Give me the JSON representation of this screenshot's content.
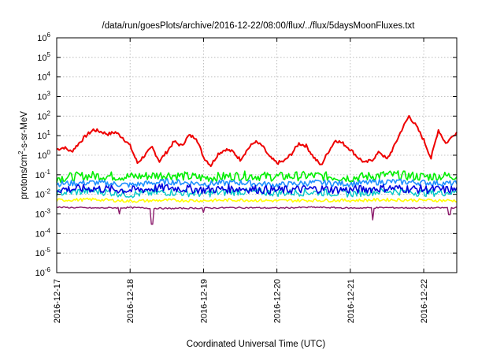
{
  "chart_data": {
    "type": "line",
    "title": "/data/run/goesPlots/archive/2016-12-22/08:00/flux/../flux/5daysMoonFluxes.txt",
    "xlabel": "Coordinated Universal Time (UTC)",
    "ylabel_base": "protons/cm",
    "ylabel_sup": "2",
    "ylabel_rest": "-s-sr-MeV",
    "y_scale": "log",
    "ylim_exp": [
      -6,
      6
    ],
    "y_ticks": [
      {
        "base": "10",
        "exp": "-6",
        "e": -6
      },
      {
        "base": "10",
        "exp": "-5",
        "e": -5
      },
      {
        "base": "10",
        "exp": "-4",
        "e": -4
      },
      {
        "base": "10",
        "exp": "-3",
        "e": -3
      },
      {
        "base": "10",
        "exp": "-2",
        "e": -2
      },
      {
        "base": "10",
        "exp": "-1",
        "e": -1
      },
      {
        "base": "10",
        "exp": "0",
        "e": 0
      },
      {
        "base": "10",
        "exp": "1",
        "e": 1
      },
      {
        "base": "10",
        "exp": "2",
        "e": 2
      },
      {
        "base": "10",
        "exp": "3",
        "e": 3
      },
      {
        "base": "10",
        "exp": "4",
        "e": 4
      },
      {
        "base": "10",
        "exp": "5",
        "e": 5
      },
      {
        "base": "10",
        "exp": "6",
        "e": 6
      }
    ],
    "xlim_days": [
      0,
      5.45
    ],
    "x_ticks": [
      {
        "label": "2016-12-17",
        "day": 0
      },
      {
        "label": "2016-12-18",
        "day": 1
      },
      {
        "label": "2016-12-19",
        "day": 2
      },
      {
        "label": "2016-12-20",
        "day": 3
      },
      {
        "label": "2016-12-21",
        "day": 4
      },
      {
        "label": "2016-12-22",
        "day": 5
      }
    ],
    "grid": true,
    "series": [
      {
        "color": "#ee0000",
        "width": 2.0,
        "x": [
          0,
          0.1,
          0.2,
          0.3,
          0.4,
          0.5,
          0.6,
          0.7,
          0.8,
          0.9,
          1.0,
          1.1,
          1.2,
          1.3,
          1.4,
          1.5,
          1.6,
          1.7,
          1.8,
          1.9,
          2.0,
          2.1,
          2.2,
          2.3,
          2.4,
          2.5,
          2.6,
          2.7,
          2.8,
          2.9,
          3.0,
          3.1,
          3.2,
          3.3,
          3.4,
          3.5,
          3.6,
          3.7,
          3.8,
          3.9,
          4.0,
          4.1,
          4.2,
          4.3,
          4.4,
          4.5,
          4.6,
          4.7,
          4.8,
          4.9,
          5.0,
          5.1,
          5.2,
          5.3,
          5.45
        ],
        "y": [
          2,
          2.5,
          1.5,
          4,
          10,
          20,
          16,
          12,
          15,
          8,
          3,
          0.4,
          1,
          2.5,
          0.5,
          1.5,
          5,
          3,
          10,
          8,
          0.8,
          0.3,
          1.2,
          2,
          1.5,
          0.6,
          2,
          5,
          3,
          0.8,
          0.4,
          0.5,
          1.2,
          4,
          3,
          0.8,
          0.3,
          1.5,
          6,
          4,
          2,
          0.8,
          0.4,
          0.6,
          1.5,
          0.6,
          3,
          20,
          100,
          30,
          6,
          0.7,
          20,
          4,
          15
        ]
      },
      {
        "color": "#00ee00",
        "width": 1.6,
        "x": [
          0,
          0.5,
          1.0,
          1.5,
          2.0,
          2.5,
          3.0,
          3.5,
          4.0,
          4.5,
          5.0,
          5.45
        ],
        "y": [
          0.07,
          0.09,
          0.08,
          0.1,
          0.07,
          0.09,
          0.08,
          0.09,
          0.07,
          0.1,
          0.08,
          0.09
        ],
        "noise": 0.55
      },
      {
        "color": "#1e90ff",
        "width": 1.6,
        "x": [
          0,
          0.5,
          1.0,
          1.5,
          2.0,
          2.5,
          3.0,
          3.5,
          4.0,
          4.5,
          5.0,
          5.45
        ],
        "y": [
          0.035,
          0.04,
          0.03,
          0.045,
          0.035,
          0.04,
          0.03,
          0.04,
          0.035,
          0.045,
          0.04,
          0.035
        ],
        "noise": 0.35
      },
      {
        "color": "#00c8c8",
        "width": 1.4,
        "x": [
          0,
          0.5,
          1.0,
          1.5,
          2.0,
          2.5,
          3.0,
          3.5,
          4.0,
          4.5,
          5.0,
          5.45
        ],
        "y": [
          0.012,
          0.015,
          0.01,
          0.013,
          0.011,
          0.014,
          0.012,
          0.013,
          0.011,
          0.015,
          0.012,
          0.013
        ],
        "noise": 0.45
      },
      {
        "color": "#0000dd",
        "width": 1.6,
        "x": [
          0,
          0.5,
          1.0,
          1.5,
          2.0,
          2.5,
          3.0,
          3.5,
          4.0,
          4.5,
          5.0,
          5.45
        ],
        "y": [
          0.018,
          0.02,
          0.016,
          0.022,
          0.017,
          0.02,
          0.016,
          0.019,
          0.017,
          0.021,
          0.018,
          0.017
        ],
        "noise": 0.5
      },
      {
        "color": "#ffff00",
        "width": 1.6,
        "x": [
          0,
          0.5,
          1.0,
          1.5,
          2.0,
          2.5,
          3.0,
          3.5,
          4.0,
          4.5,
          5.0,
          5.45
        ],
        "y": [
          0.005,
          0.0055,
          0.0045,
          0.005,
          0.0048,
          0.0052,
          0.0047,
          0.005,
          0.0049,
          0.0053,
          0.005,
          0.0048
        ],
        "noise": 0.18
      },
      {
        "color": "#8b1a6b",
        "width": 1.4,
        "x": [
          0,
          0.5,
          1.0,
          1.5,
          2.0,
          2.5,
          3.0,
          3.5,
          4.0,
          4.5,
          5.0,
          5.45
        ],
        "y": [
          0.0022,
          0.002,
          0.0021,
          0.0019,
          0.002,
          0.0021,
          0.002,
          0.0022,
          0.002,
          0.0021,
          0.002,
          0.0021
        ],
        "noise": 0.08,
        "dips": [
          [
            1.3,
            0.0003
          ],
          [
            0.85,
            0.001
          ],
          [
            2.0,
            0.0012
          ],
          [
            4.3,
            0.0005
          ],
          [
            5.35,
            0.0009
          ]
        ]
      }
    ]
  }
}
